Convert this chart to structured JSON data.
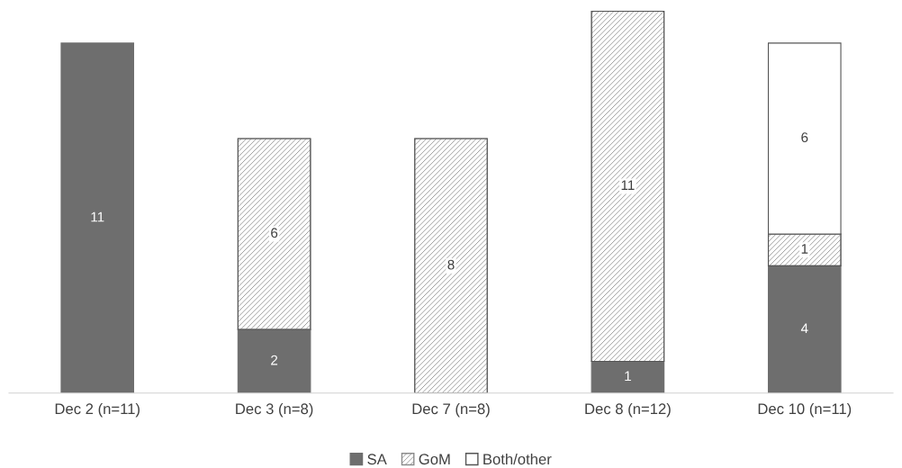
{
  "chart_data": {
    "type": "bar",
    "stacked": true,
    "data_labels": true,
    "legend": "bottom",
    "grid": false,
    "categories": [
      "Dec 2 (n=11)",
      "Dec 3 (n=8)",
      "Dec 7 (n=8)",
      "Dec 8 (n=12)",
      "Dec 10 (n=11)"
    ],
    "series": [
      {
        "name": "SA",
        "color": "#6e6e6e",
        "values": [
          11,
          2,
          null,
          1,
          4
        ]
      },
      {
        "name": "GoM",
        "color": "#8c8c8c",
        "values": [
          null,
          6,
          8,
          11,
          1
        ]
      },
      {
        "name": "Both/other",
        "color": "#ffffff",
        "values": [
          null,
          null,
          null,
          null,
          6
        ]
      }
    ]
  }
}
